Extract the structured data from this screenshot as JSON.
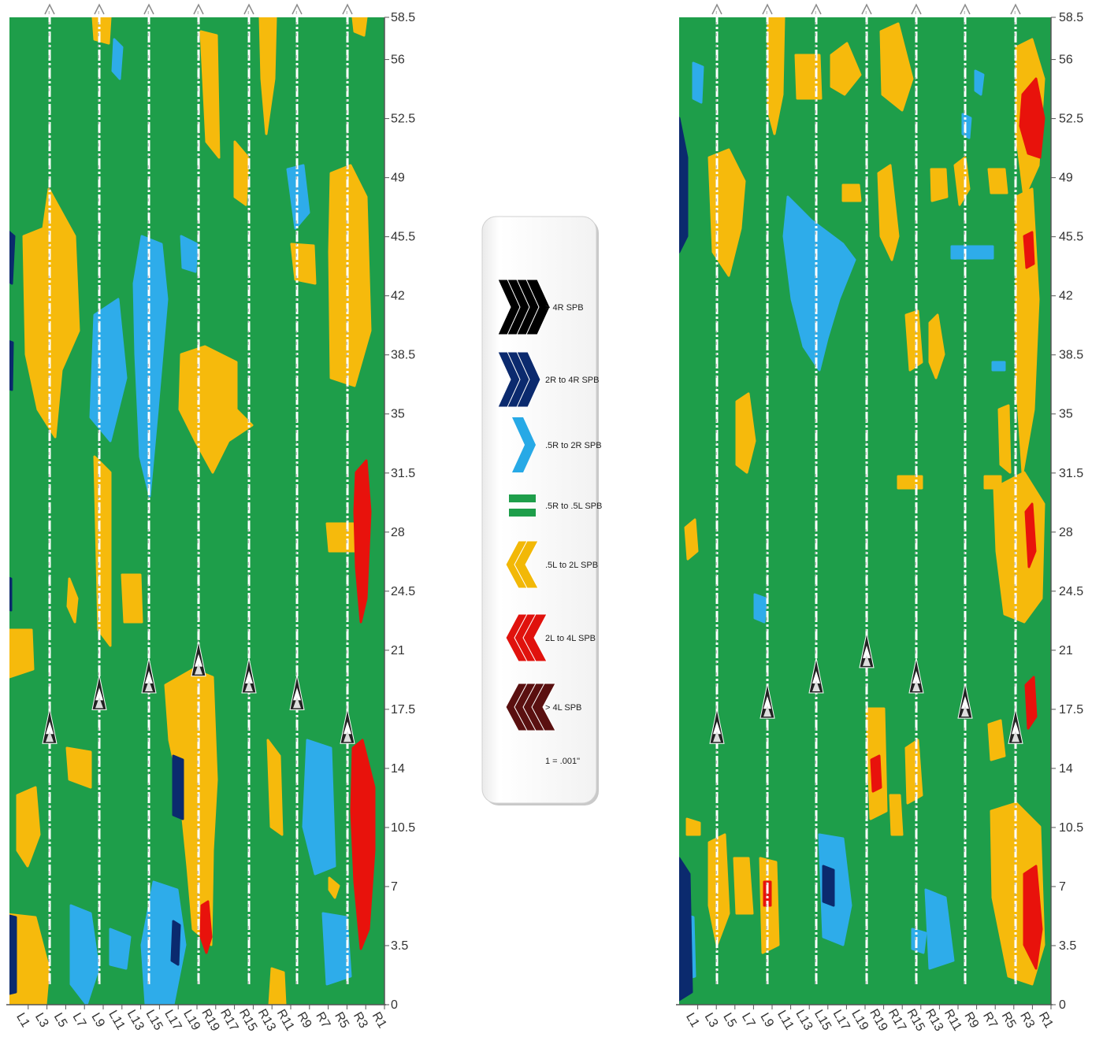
{
  "chart_data": [
    {
      "type": "heatmap",
      "title": "",
      "xlabel": "",
      "ylabel": "",
      "x_categories": [
        "L1",
        "L3",
        "L5",
        "L7",
        "L9",
        "L11",
        "L13",
        "L15",
        "L17",
        "L19",
        "R19",
        "R17",
        "R15",
        "R13",
        "R11",
        "R9",
        "R7",
        "R5",
        "R3",
        "R1"
      ],
      "ylim": [
        0,
        58.5
      ],
      "y_ticks": [
        "0",
        "3.5",
        "7",
        "10.5",
        "14",
        "17.5",
        "21",
        "24.5",
        "28",
        "31.5",
        "35",
        "38.5",
        "42",
        "45.5",
        "49",
        "52.5",
        "56",
        "58.5"
      ],
      "background_level": ".5R to .5L SPB",
      "arrow_columns": [
        "L5",
        "L9",
        "L15",
        "R19",
        "R15",
        "R9",
        "R5"
      ],
      "arrow_marker_levels": [
        16.5,
        18.5,
        19.5,
        20.5,
        19.5,
        18.5,
        16.5
      ],
      "regions": [
        {
          "level": ".5L to 2L SPB",
          "columns": [
            "L3",
            "L5"
          ],
          "y": [
            27,
            45
          ]
        },
        {
          "level": ".5L to 2L SPB",
          "columns": [
            "R19",
            "R17"
          ],
          "y": [
            17,
            39
          ]
        },
        {
          "level": ".5L to 2L SPB",
          "columns": [
            "R5",
            "R3"
          ],
          "y": [
            28,
            50
          ]
        },
        {
          "level": "2L to 4L SPB",
          "columns": [
            "R3"
          ],
          "y": [
            2,
            16
          ]
        },
        {
          "level": "2L to 4L SPB",
          "columns": [
            "R3"
          ],
          "y": [
            23,
            33
          ]
        },
        {
          "level": "2L to 4L SPB",
          "columns": [
            "R19"
          ],
          "y": [
            3,
            6
          ]
        },
        {
          "level": ".5R to 2R SPB",
          "columns": [
            "L15",
            "L17"
          ],
          "y": [
            0,
            10
          ]
        },
        {
          "level": ".5R to 2R SPB",
          "columns": [
            "L13",
            "L15"
          ],
          "y": [
            34,
            44
          ]
        },
        {
          "level": "2R to 4R SPB",
          "columns": [
            "L17"
          ],
          "y": [
            13,
            15
          ]
        },
        {
          "level": "2R to 4R SPB",
          "columns": [
            "L1"
          ],
          "y": [
            1,
            5
          ]
        }
      ]
    },
    {
      "type": "heatmap",
      "title": "",
      "xlabel": "",
      "ylabel": "",
      "x_categories": [
        "L1",
        "L3",
        "L5",
        "L7",
        "L9",
        "L11",
        "L13",
        "L15",
        "L17",
        "L19",
        "R19",
        "R17",
        "R15",
        "R13",
        "R11",
        "R9",
        "R7",
        "R5",
        "R3",
        "R1"
      ],
      "ylim": [
        0,
        58.5
      ],
      "y_ticks": [
        "0",
        "3.5",
        "7",
        "10.5",
        "14",
        "17.5",
        "21",
        "24.5",
        "28",
        "31.5",
        "35",
        "38.5",
        "42",
        "45.5",
        "49",
        "52.5",
        "56",
        "58.5"
      ],
      "background_level": ".5R to .5L SPB",
      "arrow_columns": [
        "L5",
        "L9",
        "L15",
        "R19",
        "R15",
        "R9",
        "R5"
      ],
      "arrow_marker_levels": [
        16.5,
        18,
        19.5,
        21,
        19.5,
        18,
        16.5
      ],
      "regions": [
        {
          "level": "2L to 4L SPB",
          "columns": [
            "R3"
          ],
          "y": [
            50,
            56
          ]
        },
        {
          "level": "2L to 4L SPB",
          "columns": [
            "R3"
          ],
          "y": [
            2,
            8
          ]
        },
        {
          "level": "2L to 4L SPB",
          "columns": [
            "R19"
          ],
          "y": [
            13,
            15
          ]
        },
        {
          "level": ".5L to 2L SPB",
          "columns": [
            "R5",
            "R3"
          ],
          "y": [
            23,
            58
          ]
        },
        {
          "level": ".5R to 2R SPB",
          "columns": [
            "L15",
            "L17"
          ],
          "y": [
            38,
            47
          ]
        },
        {
          "level": "2R to 4R SPB",
          "columns": [
            "L17"
          ],
          "y": [
            6,
            8
          ]
        },
        {
          "level": "2R to 4R SPB",
          "columns": [
            "L1"
          ],
          "y": [
            3,
            9
          ]
        },
        {
          "level": "2R to 4R SPB",
          "columns": [
            "L1"
          ],
          "y": [
            36,
            50
          ]
        }
      ]
    }
  ],
  "legend": {
    "items": [
      {
        "label": "> 4R SPB",
        "color": "#000000",
        "icon": "right-chevrons-icon"
      },
      {
        "label": "2R to 4R SPB",
        "color": "#0b2a6e",
        "icon": "right-chevrons-icon"
      },
      {
        "label": ".5R to 2R SPB",
        "color": "#27a9e6",
        "icon": "right-chevron-icon"
      },
      {
        "label": ".5R to .5L SPB",
        "color": "#1e9e4a",
        "icon": "equals-bars-icon"
      },
      {
        "label": ".5L to 2L SPB",
        "color": "#f2b807",
        "icon": "left-chevrons-icon"
      },
      {
        "label": "2L to 4L SPB",
        "color": "#e0120d",
        "icon": "left-chevrons-icon"
      },
      {
        "label": "> 4L SPB",
        "color": "#5a1010",
        "icon": "left-chevrons-icon"
      }
    ],
    "note": "1 = .001\""
  },
  "colors": {
    "green": "#1e9e4a",
    "yellow": "#f6ba0c",
    "blue": "#2eacea",
    "navy": "#0b2a6e",
    "red": "#e8120c",
    "arrow": "#f3f3f3"
  }
}
